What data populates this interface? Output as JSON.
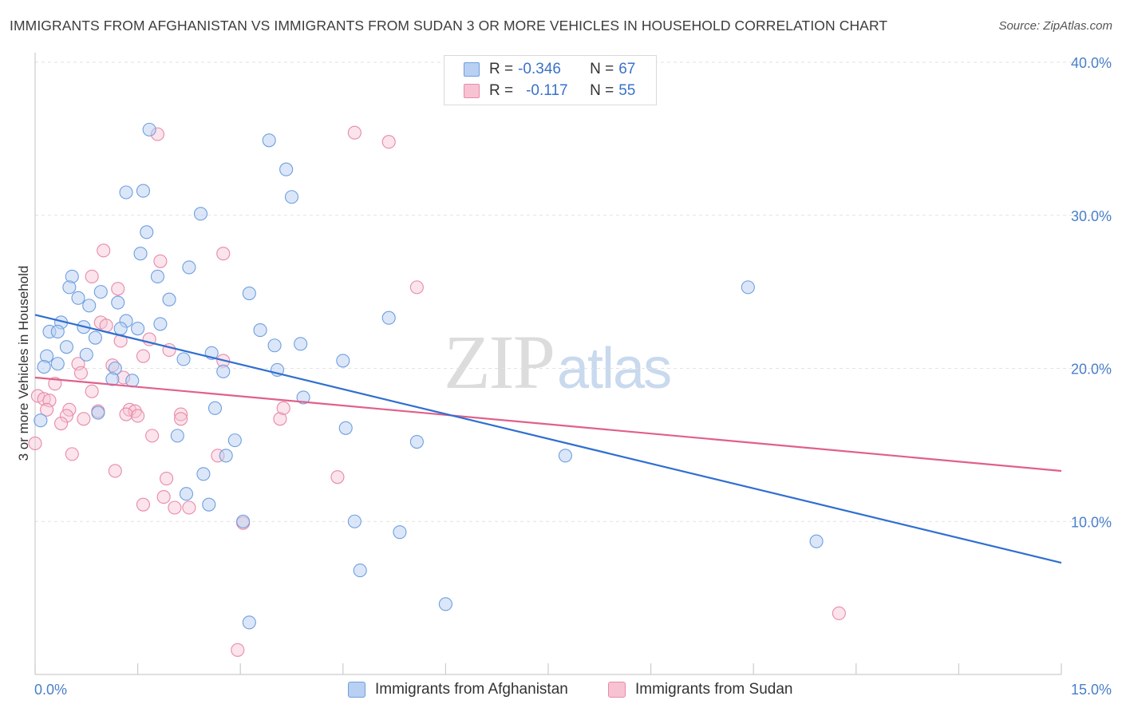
{
  "header": {
    "title": "IMMIGRANTS FROM AFGHANISTAN VS IMMIGRANTS FROM SUDAN 3 OR MORE VEHICLES IN HOUSEHOLD CORRELATION CHART",
    "source": "Source: ZipAtlas.com"
  },
  "watermark": {
    "zip": "ZIP",
    "atlas": "atlas"
  },
  "legend": {
    "r_label": "R =",
    "n_label": "N =",
    "afghanistan": {
      "r": "-0.346",
      "n": "67"
    },
    "sudan": {
      "r": "-0.117",
      "n": "55"
    }
  },
  "colors": {
    "afghanistan_fill": "#b8d0f2",
    "afghanistan_stroke": "#6f9ee0",
    "afghanistan_line": "#2f6fd0",
    "sudan_fill": "#f7c3d3",
    "sudan_stroke": "#e88aa8",
    "sudan_line": "#e0608a",
    "grid": "#e2e2e2",
    "tick_text": "#4a7fc9"
  },
  "chart_data": {
    "type": "scatter",
    "title": "IMMIGRANTS FROM AFGHANISTAN VS IMMIGRANTS FROM SUDAN 3 OR MORE VEHICLES IN HOUSEHOLD CORRELATION CHART",
    "xlabel": "",
    "ylabel": "3 or more Vehicles in Household",
    "xlim": [
      0,
      15
    ],
    "ylim": [
      0,
      40
    ],
    "x_tick_labels": [
      "0.0%",
      "15.0%"
    ],
    "y_ticks": [
      10,
      20,
      30,
      40
    ],
    "y_tick_labels": [
      "10.0%",
      "20.0%",
      "30.0%",
      "40.0%"
    ],
    "grid": "horizontal dashed",
    "legend_position": "top-center",
    "series": [
      {
        "name": "Immigrants from Afghanistan",
        "r": -0.346,
        "n": 67,
        "trend": {
          "x": [
            0,
            15
          ],
          "y": [
            23.5,
            7.3
          ]
        },
        "points": [
          {
            "x": 1.67,
            "y": 35.6
          },
          {
            "x": 3.42,
            "y": 34.9
          },
          {
            "x": 3.67,
            "y": 33.0
          },
          {
            "x": 3.75,
            "y": 31.2
          },
          {
            "x": 1.33,
            "y": 31.5
          },
          {
            "x": 1.58,
            "y": 31.6
          },
          {
            "x": 2.42,
            "y": 30.1
          },
          {
            "x": 1.63,
            "y": 28.9
          },
          {
            "x": 1.54,
            "y": 27.5
          },
          {
            "x": 2.25,
            "y": 26.6
          },
          {
            "x": 1.79,
            "y": 26.0
          },
          {
            "x": 0.54,
            "y": 26.0
          },
          {
            "x": 0.5,
            "y": 25.3
          },
          {
            "x": 0.96,
            "y": 25.0
          },
          {
            "x": 3.13,
            "y": 24.9
          },
          {
            "x": 10.42,
            "y": 25.3
          },
          {
            "x": 0.63,
            "y": 24.6
          },
          {
            "x": 1.96,
            "y": 24.5
          },
          {
            "x": 0.79,
            "y": 24.1
          },
          {
            "x": 1.21,
            "y": 24.3
          },
          {
            "x": 1.33,
            "y": 23.1
          },
          {
            "x": 0.38,
            "y": 23.0
          },
          {
            "x": 1.83,
            "y": 22.9
          },
          {
            "x": 0.71,
            "y": 22.7
          },
          {
            "x": 1.25,
            "y": 22.6
          },
          {
            "x": 1.5,
            "y": 22.6
          },
          {
            "x": 5.17,
            "y": 23.3
          },
          {
            "x": 0.21,
            "y": 22.4
          },
          {
            "x": 0.33,
            "y": 22.4
          },
          {
            "x": 3.29,
            "y": 22.5
          },
          {
            "x": 0.88,
            "y": 22.0
          },
          {
            "x": 3.88,
            "y": 21.6
          },
          {
            "x": 3.5,
            "y": 21.5
          },
          {
            "x": 0.46,
            "y": 21.4
          },
          {
            "x": 0.17,
            "y": 20.8
          },
          {
            "x": 0.75,
            "y": 20.9
          },
          {
            "x": 2.58,
            "y": 21.0
          },
          {
            "x": 2.17,
            "y": 20.6
          },
          {
            "x": 4.5,
            "y": 20.5
          },
          {
            "x": 0.33,
            "y": 20.3
          },
          {
            "x": 0.13,
            "y": 20.1
          },
          {
            "x": 1.17,
            "y": 20.0
          },
          {
            "x": 2.75,
            "y": 19.8
          },
          {
            "x": 3.54,
            "y": 19.9
          },
          {
            "x": 1.13,
            "y": 19.3
          },
          {
            "x": 1.42,
            "y": 19.2
          },
          {
            "x": 3.92,
            "y": 18.1
          },
          {
            "x": 0.08,
            "y": 16.6
          },
          {
            "x": 0.92,
            "y": 17.1
          },
          {
            "x": 2.63,
            "y": 17.4
          },
          {
            "x": 4.54,
            "y": 16.1
          },
          {
            "x": 2.08,
            "y": 15.6
          },
          {
            "x": 2.92,
            "y": 15.3
          },
          {
            "x": 5.58,
            "y": 15.2
          },
          {
            "x": 2.79,
            "y": 14.3
          },
          {
            "x": 7.75,
            "y": 14.3
          },
          {
            "x": 2.46,
            "y": 13.1
          },
          {
            "x": 2.21,
            "y": 11.8
          },
          {
            "x": 2.54,
            "y": 11.1
          },
          {
            "x": 3.04,
            "y": 10.0
          },
          {
            "x": 4.67,
            "y": 10.0
          },
          {
            "x": 5.33,
            "y": 9.3
          },
          {
            "x": 11.42,
            "y": 8.7
          },
          {
            "x": 4.75,
            "y": 6.8
          },
          {
            "x": 6.0,
            "y": 4.6
          },
          {
            "x": 3.13,
            "y": 3.4
          }
        ]
      },
      {
        "name": "Immigrants from Sudan",
        "r": -0.117,
        "n": 55,
        "trend": {
          "x": [
            0,
            15
          ],
          "y": [
            19.4,
            13.3
          ]
        },
        "points": [
          {
            "x": 1.79,
            "y": 35.3
          },
          {
            "x": 4.67,
            "y": 35.4
          },
          {
            "x": 5.17,
            "y": 34.8
          },
          {
            "x": 1.0,
            "y": 27.7
          },
          {
            "x": 2.75,
            "y": 27.5
          },
          {
            "x": 1.83,
            "y": 27.0
          },
          {
            "x": 0.83,
            "y": 26.0
          },
          {
            "x": 1.21,
            "y": 25.2
          },
          {
            "x": 5.58,
            "y": 25.3
          },
          {
            "x": 0.96,
            "y": 23.0
          },
          {
            "x": 1.04,
            "y": 22.8
          },
          {
            "x": 1.67,
            "y": 21.9
          },
          {
            "x": 1.25,
            "y": 21.8
          },
          {
            "x": 0.63,
            "y": 20.3
          },
          {
            "x": 1.58,
            "y": 20.8
          },
          {
            "x": 1.96,
            "y": 21.2
          },
          {
            "x": 2.75,
            "y": 20.5
          },
          {
            "x": 1.13,
            "y": 20.2
          },
          {
            "x": 0.67,
            "y": 19.7
          },
          {
            "x": 1.29,
            "y": 19.4
          },
          {
            "x": 0.29,
            "y": 19.0
          },
          {
            "x": 0.04,
            "y": 18.2
          },
          {
            "x": 0.83,
            "y": 18.5
          },
          {
            "x": 0.13,
            "y": 18.0
          },
          {
            "x": 0.21,
            "y": 17.9
          },
          {
            "x": 0.17,
            "y": 17.3
          },
          {
            "x": 0.5,
            "y": 17.3
          },
          {
            "x": 0.92,
            "y": 17.2
          },
          {
            "x": 1.38,
            "y": 17.3
          },
          {
            "x": 1.46,
            "y": 17.2
          },
          {
            "x": 1.33,
            "y": 17.0
          },
          {
            "x": 1.5,
            "y": 16.9
          },
          {
            "x": 2.13,
            "y": 17.0
          },
          {
            "x": 0.46,
            "y": 16.9
          },
          {
            "x": 0.71,
            "y": 16.7
          },
          {
            "x": 2.13,
            "y": 16.7
          },
          {
            "x": 3.58,
            "y": 16.7
          },
          {
            "x": 0.38,
            "y": 16.4
          },
          {
            "x": 3.63,
            "y": 17.4
          },
          {
            "x": 0.0,
            "y": 15.1
          },
          {
            "x": 1.71,
            "y": 15.6
          },
          {
            "x": 0.54,
            "y": 14.4
          },
          {
            "x": 2.67,
            "y": 14.3
          },
          {
            "x": 1.17,
            "y": 13.3
          },
          {
            "x": 1.92,
            "y": 12.8
          },
          {
            "x": 4.42,
            "y": 12.9
          },
          {
            "x": 1.88,
            "y": 11.6
          },
          {
            "x": 1.58,
            "y": 11.1
          },
          {
            "x": 2.04,
            "y": 10.9
          },
          {
            "x": 2.25,
            "y": 10.9
          },
          {
            "x": 3.04,
            "y": 9.9
          },
          {
            "x": 11.75,
            "y": 4.0
          },
          {
            "x": 2.96,
            "y": 1.6
          }
        ]
      }
    ]
  },
  "bottom_legend": {
    "afghanistan_label": "Immigrants from Afghanistan",
    "sudan_label": "Immigrants from Sudan"
  }
}
